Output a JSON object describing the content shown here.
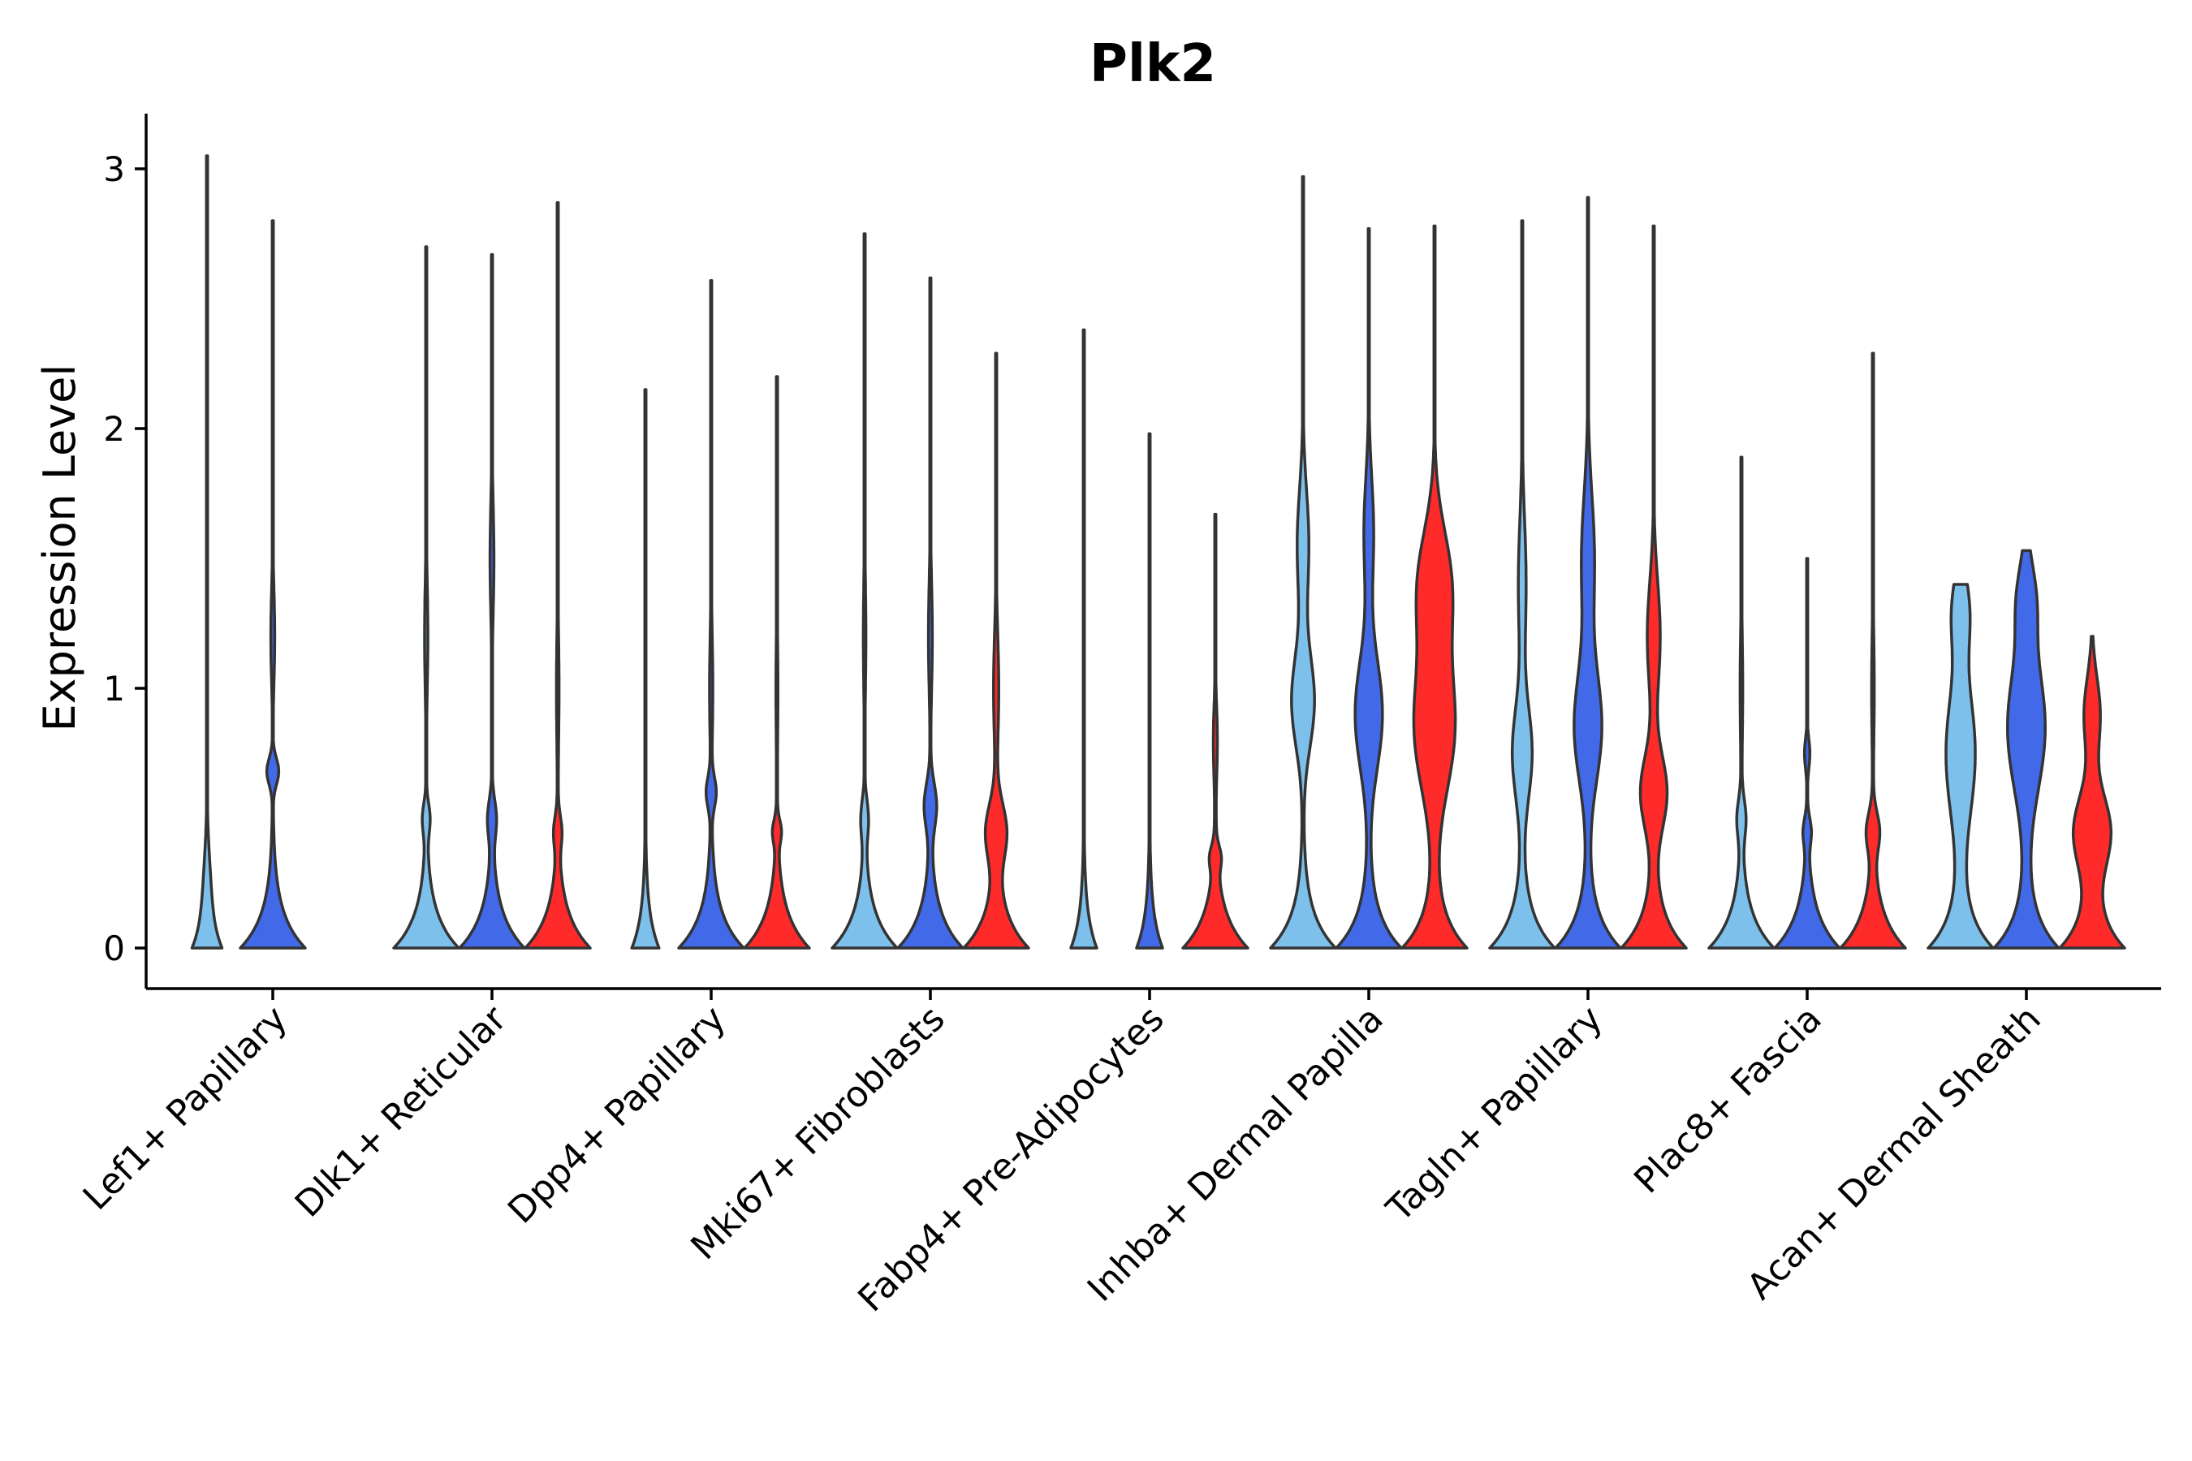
{
  "chart_data": {
    "type": "violin",
    "title": "Plk2",
    "xlabel": "",
    "ylabel": "Expression Level",
    "ylim": [
      -0.15,
      3.2
    ],
    "yticks": [
      0,
      1,
      2,
      3
    ],
    "categories": [
      "Lef1+ Papillary",
      "Dlk1+ Reticular",
      "Dpp4+ Papillary",
      "Mki67+ Fibroblasts",
      "Fabp4+ Pre-Adipocytes",
      "Inhba+ Dermal Papilla",
      "Tagln+ Papillary",
      "Plac8+ Fascia",
      "Acan+ Dermal Sheath"
    ],
    "series": [
      {
        "name": "group1",
        "color": "#7DC0EC"
      },
      {
        "name": "group2",
        "color": "#4169E8"
      },
      {
        "name": "group3",
        "color": "#FF2A2A"
      }
    ],
    "violins": [
      [
        {
          "max": 3.05,
          "w0": 0.45,
          "b1v": 0.06,
          "b1c": 0.25,
          "b1s": 0.2,
          "b2v": 0.0,
          "b2c": 0,
          "b2s": 0.3
        },
        {
          "max": 2.8,
          "w0": 1.0,
          "b1v": 0.18,
          "b1c": 0.68,
          "b1s": 0.07,
          "b2v": 0.06,
          "b2c": 1.2,
          "b2s": 0.25
        },
        null
      ],
      [
        {
          "max": 2.7,
          "w0": 1.0,
          "b1v": 0.1,
          "b1c": 0.5,
          "b1s": 0.08,
          "b2v": 0.05,
          "b2c": 1.2,
          "b2s": 0.3
        },
        {
          "max": 2.67,
          "w0": 1.0,
          "b1v": 0.12,
          "b1c": 0.5,
          "b1s": 0.1,
          "b2v": 0.06,
          "b2c": 1.5,
          "b2s": 0.3
        },
        {
          "max": 2.87,
          "w0": 1.0,
          "b1v": 0.1,
          "b1c": 0.45,
          "b1s": 0.08,
          "b2v": 0.04,
          "b2c": 1.0,
          "b2s": 0.3
        }
      ],
      [
        {
          "max": 2.15,
          "w0": 0.42,
          "b1v": 0.0,
          "b1c": 0.5,
          "b1s": 0.1,
          "b2v": 0.0,
          "b2c": 1.0,
          "b2s": 0.3
        },
        {
          "max": 2.57,
          "w0": 1.0,
          "b1v": 0.14,
          "b1c": 0.6,
          "b1s": 0.08,
          "b2v": 0.05,
          "b2c": 1.0,
          "b2s": 0.3
        },
        {
          "max": 2.2,
          "w0": 1.0,
          "b1v": 0.11,
          "b1c": 0.45,
          "b1s": 0.06,
          "b2v": 0.03,
          "b2c": 1.0,
          "b2s": 0.3
        }
      ],
      [
        {
          "max": 2.75,
          "w0": 1.0,
          "b1v": 0.1,
          "b1c": 0.5,
          "b1s": 0.1,
          "b2v": 0.04,
          "b2c": 1.2,
          "b2s": 0.3
        },
        {
          "max": 2.58,
          "w0": 1.0,
          "b1v": 0.18,
          "b1c": 0.55,
          "b1s": 0.12,
          "b2v": 0.06,
          "b2c": 1.2,
          "b2s": 0.3
        },
        {
          "max": 2.29,
          "w0": 1.0,
          "b1v": 0.3,
          "b1c": 0.45,
          "b1s": 0.15,
          "b2v": 0.08,
          "b2c": 1.0,
          "b2s": 0.3
        }
      ],
      [
        {
          "max": 2.38,
          "w0": 0.4,
          "b1v": 0.0,
          "b1c": 0.5,
          "b1s": 0.1,
          "b2v": 0.0,
          "b2c": 1.0,
          "b2s": 0.3
        },
        {
          "max": 1.98,
          "w0": 0.4,
          "b1v": 0.0,
          "b1c": 0.5,
          "b1s": 0.1,
          "b2v": 0.0,
          "b2c": 1.0,
          "b2s": 0.3
        },
        {
          "max": 1.67,
          "w0": 1.0,
          "b1v": 0.12,
          "b1c": 0.35,
          "b1s": 0.06,
          "b2v": 0.06,
          "b2c": 0.8,
          "b2s": 0.2
        }
      ],
      [
        {
          "max": 2.97,
          "w0": 1.0,
          "b1v": 0.35,
          "b1c": 0.95,
          "b1s": 0.25,
          "b2v": 0.18,
          "b2c": 1.55,
          "b2s": 0.3
        },
        {
          "max": 2.77,
          "w0": 1.0,
          "b1v": 0.42,
          "b1c": 0.9,
          "b1s": 0.3,
          "b2v": 0.15,
          "b2c": 1.6,
          "b2s": 0.3
        },
        {
          "max": 2.78,
          "w0": 1.0,
          "b1v": 0.62,
          "b1c": 0.85,
          "b1s": 0.35,
          "b2v": 0.5,
          "b2c": 1.4,
          "b2s": 0.3
        }
      ],
      [
        {
          "max": 2.8,
          "w0": 1.0,
          "b1v": 0.3,
          "b1c": 0.75,
          "b1s": 0.25,
          "b2v": 0.12,
          "b2c": 1.4,
          "b2s": 0.35
        },
        {
          "max": 2.89,
          "w0": 1.0,
          "b1v": 0.42,
          "b1c": 0.85,
          "b1s": 0.3,
          "b2v": 0.2,
          "b2c": 1.5,
          "b2s": 0.35
        },
        {
          "max": 2.78,
          "w0": 1.0,
          "b1v": 0.4,
          "b1c": 0.6,
          "b1s": 0.2,
          "b2v": 0.2,
          "b2c": 1.2,
          "b2s": 0.3
        }
      ],
      [
        {
          "max": 1.89,
          "w0": 1.0,
          "b1v": 0.12,
          "b1c": 0.5,
          "b1s": 0.1,
          "b2v": 0.04,
          "b2c": 1.0,
          "b2s": 0.3
        },
        {
          "max": 1.5,
          "w0": 1.0,
          "b1v": 0.1,
          "b1c": 0.45,
          "b1s": 0.07,
          "b2v": 0.08,
          "b2c": 0.75,
          "b2s": 0.08
        },
        {
          "max": 2.29,
          "w0": 1.0,
          "b1v": 0.18,
          "b1c": 0.45,
          "b1s": 0.1,
          "b2v": 0.04,
          "b2c": 1.0,
          "b2s": 0.3
        }
      ],
      [
        {
          "max": 1.4,
          "w0": 1.0,
          "b1v": 0.45,
          "b1c": 0.75,
          "b1s": 0.35,
          "b2v": 0.25,
          "b2c": 1.3,
          "b2s": 0.2
        },
        {
          "max": 1.53,
          "w0": 1.0,
          "b1v": 0.58,
          "b1c": 0.85,
          "b1s": 0.35,
          "b2v": 0.25,
          "b2c": 1.35,
          "b2s": 0.2
        },
        {
          "max": 1.2,
          "w0": 1.0,
          "b1v": 0.55,
          "b1c": 0.45,
          "b1s": 0.2,
          "b2v": 0.25,
          "b2c": 0.9,
          "b2s": 0.2
        }
      ]
    ]
  }
}
